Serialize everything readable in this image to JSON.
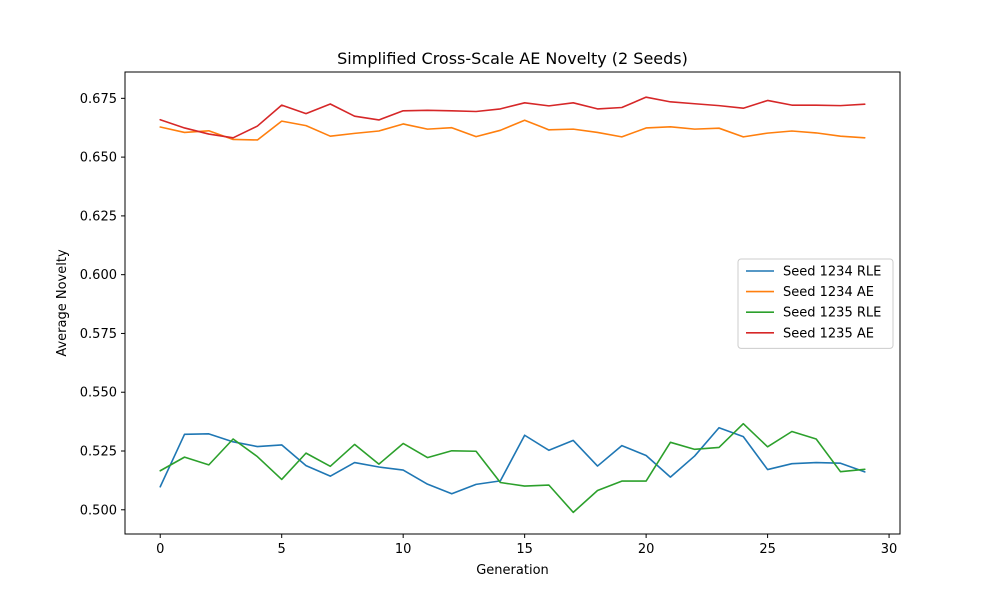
{
  "chart_data": {
    "type": "line",
    "title": "Simplified Cross-Scale AE Novelty (2 Seeds)",
    "xlabel": "Generation",
    "ylabel": "Average Novelty",
    "xlim": [
      -1.45,
      30.45
    ],
    "ylim": [
      0.4897,
      0.6862
    ],
    "xticks": [
      "0",
      "5",
      "10",
      "15",
      "20",
      "25",
      "30"
    ],
    "yticks": [
      "0.500",
      "0.525",
      "0.550",
      "0.575",
      "0.600",
      "0.625",
      "0.650",
      "0.675"
    ],
    "legend_position": "center-right",
    "grid": false,
    "x": [
      0,
      1,
      2,
      3,
      4,
      5,
      6,
      7,
      8,
      9,
      10,
      11,
      12,
      13,
      14,
      15,
      16,
      17,
      18,
      19,
      20,
      21,
      22,
      23,
      24,
      25,
      26,
      27,
      28,
      29
    ],
    "series": [
      {
        "name": "Seed 1234 RLE",
        "color": "#1f77b4",
        "values": [
          0.5098,
          0.5321,
          0.5323,
          0.5289,
          0.5269,
          0.5276,
          0.5188,
          0.5143,
          0.5201,
          0.5182,
          0.5169,
          0.5109,
          0.5068,
          0.5108,
          0.5123,
          0.5317,
          0.5253,
          0.5295,
          0.5186,
          0.5273,
          0.5231,
          0.5139,
          0.5229,
          0.5349,
          0.5311,
          0.5171,
          0.5196,
          0.5201,
          0.5198,
          0.5161
        ]
      },
      {
        "name": "Seed 1234 AE",
        "color": "#ff7f0e",
        "values": [
          0.6628,
          0.6605,
          0.6612,
          0.6575,
          0.6573,
          0.6653,
          0.6634,
          0.6589,
          0.6601,
          0.6611,
          0.6641,
          0.6619,
          0.6625,
          0.6587,
          0.6614,
          0.6657,
          0.6616,
          0.6619,
          0.6605,
          0.6586,
          0.6624,
          0.6629,
          0.6619,
          0.6623,
          0.6586,
          0.6602,
          0.6611,
          0.6603,
          0.6589,
          0.6582
        ]
      },
      {
        "name": "Seed 1235 RLE",
        "color": "#2ca02c",
        "values": [
          0.5166,
          0.5224,
          0.5191,
          0.5301,
          0.5226,
          0.5129,
          0.5241,
          0.5185,
          0.5278,
          0.5194,
          0.5282,
          0.5222,
          0.5251,
          0.5249,
          0.5116,
          0.5101,
          0.5105,
          0.4989,
          0.5082,
          0.5122,
          0.5122,
          0.5287,
          0.5257,
          0.5265,
          0.5366,
          0.5268,
          0.5333,
          0.5301,
          0.5162,
          0.5172
        ]
      },
      {
        "name": "Seed 1235 AE",
        "color": "#d62728",
        "values": [
          0.6659,
          0.6624,
          0.6598,
          0.6582,
          0.6632,
          0.6721,
          0.6685,
          0.6726,
          0.6674,
          0.6658,
          0.6697,
          0.6699,
          0.6697,
          0.6694,
          0.6705,
          0.6731,
          0.6718,
          0.6731,
          0.6705,
          0.6711,
          0.6755,
          0.6735,
          0.6727,
          0.6719,
          0.6708,
          0.6741,
          0.6721,
          0.6721,
          0.6719,
          0.6725
        ]
      }
    ]
  }
}
